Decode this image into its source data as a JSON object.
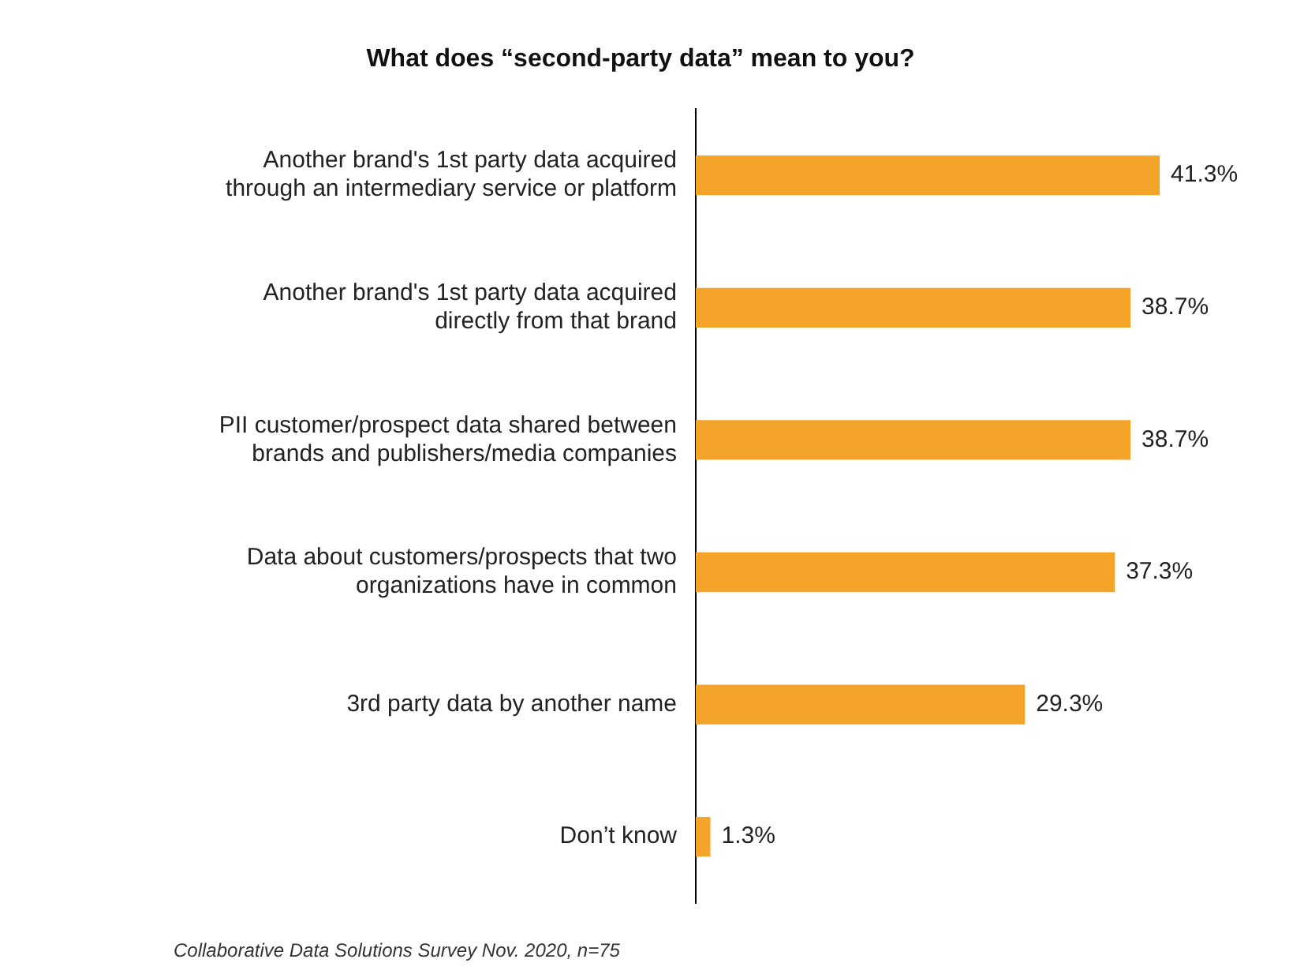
{
  "chart_data": {
    "type": "bar",
    "orientation": "horizontal",
    "title": "What does “second-party data” mean to you?",
    "categories": [
      "Another brand's 1st party data acquired through an intermediary service or platform",
      "Another brand's 1st party data acquired directly from that brand",
      "PII customer/prospect data shared between brands and publishers/media companies",
      "Data about customers/prospects that two organizations have in common",
      "3rd party data by another name",
      "Don’t know"
    ],
    "values": [
      41.3,
      38.7,
      38.7,
      37.3,
      29.3,
      1.3
    ],
    "value_labels": [
      "41.3%",
      "38.7%",
      "38.7%",
      "37.3%",
      "29.3%",
      "1.3%"
    ],
    "color": "#f5a42a",
    "tick_labels": "y",
    "grid": false,
    "legend": false,
    "annotations": [
      "Collaborative Data Solutions Survey Nov. 2020, n=75"
    ]
  }
}
